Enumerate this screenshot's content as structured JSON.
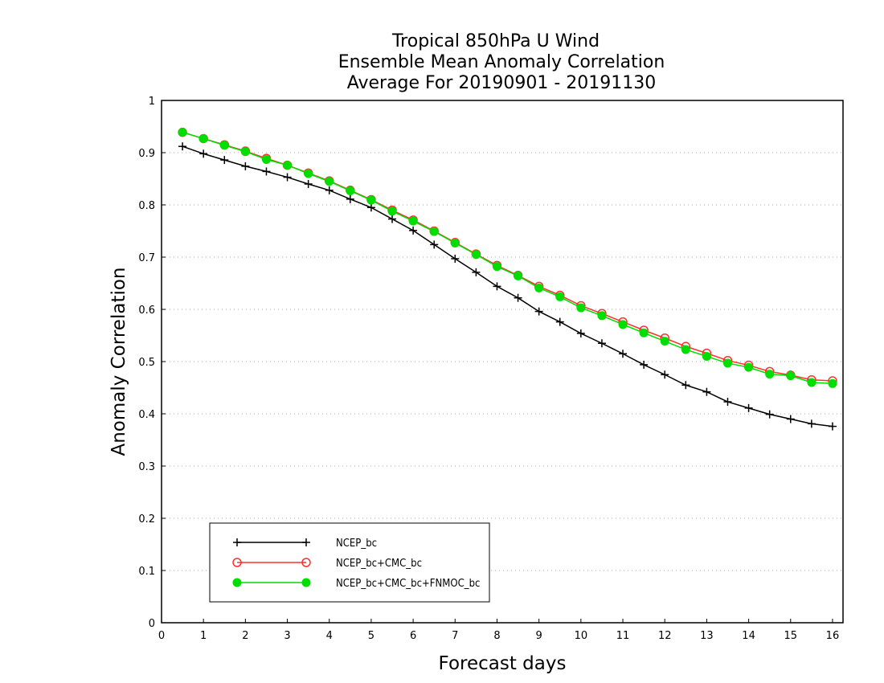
{
  "chart_data": {
    "type": "line",
    "title_lines": [
      "Tropical 850hPa U Wind",
      "Ensemble Mean Anomaly Correlation",
      "Average For 20190901 - 20191130"
    ],
    "xlabel": "Forecast days",
    "ylabel": "Anomaly Correlation",
    "xlim": [
      0,
      16.25
    ],
    "ylim": [
      0,
      1
    ],
    "x_ticks": [
      0,
      1,
      2,
      3,
      4,
      5,
      6,
      7,
      8,
      9,
      10,
      11,
      12,
      13,
      14,
      15,
      16
    ],
    "y_ticks": [
      0,
      0.1,
      0.2,
      0.3,
      0.4,
      0.5,
      0.6,
      0.7,
      0.8,
      0.9,
      1
    ],
    "y_tick_labels": [
      "0",
      "0.1",
      "0.2",
      "0.3",
      "0.4",
      "0.5",
      "0.6",
      "0.7",
      "0.8",
      "0.9",
      "1"
    ],
    "grid": "horizontal-dotted",
    "legend_position": "bottom-left",
    "x": [
      0.5,
      1,
      1.5,
      2,
      2.5,
      3,
      3.5,
      4,
      4.5,
      5,
      5.5,
      6,
      6.5,
      7,
      7.5,
      8,
      8.5,
      9,
      9.5,
      10,
      10.5,
      11,
      11.5,
      12,
      12.5,
      13,
      13.5,
      14,
      14.5,
      15,
      15.5,
      16
    ],
    "series": [
      {
        "name": "NCEP_bc",
        "color": "#000000",
        "marker": "plus",
        "values": [
          0.912,
          0.898,
          0.886,
          0.874,
          0.864,
          0.853,
          0.84,
          0.828,
          0.811,
          0.795,
          0.773,
          0.751,
          0.724,
          0.697,
          0.671,
          0.644,
          0.622,
          0.596,
          0.576,
          0.554,
          0.535,
          0.515,
          0.494,
          0.475,
          0.455,
          0.442,
          0.423,
          0.411,
          0.399,
          0.39,
          0.381,
          0.376
        ]
      },
      {
        "name": "NCEP_bc+CMC_bc",
        "color": "#ff3030",
        "marker": "open-circle",
        "values": [
          0.939,
          0.927,
          0.915,
          0.903,
          0.889,
          0.876,
          0.861,
          0.846,
          0.828,
          0.81,
          0.79,
          0.771,
          0.75,
          0.728,
          0.706,
          0.684,
          0.665,
          0.644,
          0.627,
          0.607,
          0.592,
          0.576,
          0.56,
          0.545,
          0.529,
          0.516,
          0.502,
          0.493,
          0.481,
          0.474,
          0.465,
          0.463
        ]
      },
      {
        "name": "NCEP_bc+CMC_bc+FNMOC_bc",
        "color": "#00dd00",
        "marker": "filled-circle",
        "values": [
          0.939,
          0.927,
          0.914,
          0.902,
          0.887,
          0.876,
          0.86,
          0.845,
          0.827,
          0.809,
          0.788,
          0.769,
          0.749,
          0.727,
          0.705,
          0.682,
          0.664,
          0.641,
          0.624,
          0.603,
          0.588,
          0.571,
          0.555,
          0.539,
          0.523,
          0.51,
          0.497,
          0.489,
          0.476,
          0.473,
          0.46,
          0.458
        ]
      }
    ]
  }
}
